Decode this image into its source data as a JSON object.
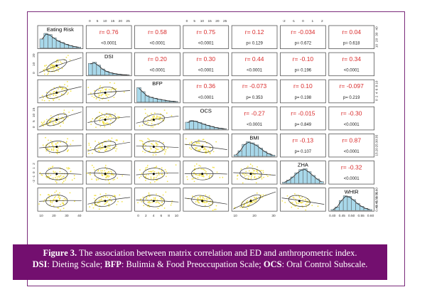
{
  "variables": [
    "Eating Risk",
    "DSI",
    "BFP",
    "OCS",
    "BMI",
    "ZHA",
    "WHtR"
  ],
  "colors": {
    "hist_fill": "#a8d8ea",
    "scatter_point": "#f2e24c",
    "correlation_text": "#d92b2b",
    "pvalue_text": "#222222",
    "panel_border": "#555555",
    "caption_bg": "#730f6f",
    "caption_text": "#ffffff",
    "frame_border": "#7a2a7a"
  },
  "chart_data": {
    "type": "scatter-matrix",
    "correlations": [
      {
        "row": 0,
        "col": 1,
        "r": "r= 0.76",
        "p": "<0.0001"
      },
      {
        "row": 0,
        "col": 2,
        "r": "r= 0.58",
        "p": "<0.0001"
      },
      {
        "row": 0,
        "col": 3,
        "r": "r= 0.75",
        "p": "<0.0001"
      },
      {
        "row": 0,
        "col": 4,
        "r": "r= 0.12",
        "p": "p= 0.129"
      },
      {
        "row": 0,
        "col": 5,
        "r": "r= -0.034",
        "p": "p= 0.672"
      },
      {
        "row": 0,
        "col": 6,
        "r": "r= 0.04",
        "p": "p= 0.618"
      },
      {
        "row": 1,
        "col": 2,
        "r": "r= 0.20",
        "p": "<0.0001"
      },
      {
        "row": 1,
        "col": 3,
        "r": "r= 0.30",
        "p": "<0.0001"
      },
      {
        "row": 1,
        "col": 4,
        "r": "r= 0.44",
        "p": "<0.0001"
      },
      {
        "row": 1,
        "col": 5,
        "r": "r= -0.10",
        "p": "p= 0.196"
      },
      {
        "row": 1,
        "col": 6,
        "r": "r= 0.34",
        "p": "<0.0001"
      },
      {
        "row": 2,
        "col": 3,
        "r": "r= 0.36",
        "p": "<0.0001"
      },
      {
        "row": 2,
        "col": 4,
        "r": "r= -0.073",
        "p": "p= 0.353"
      },
      {
        "row": 2,
        "col": 5,
        "r": "r= 0.10",
        "p": "p= 0.198"
      },
      {
        "row": 2,
        "col": 6,
        "r": "r= -0.097",
        "p": "p= 0.219"
      },
      {
        "row": 3,
        "col": 4,
        "r": "r= -0.27",
        "p": "<0.0001"
      },
      {
        "row": 3,
        "col": 5,
        "r": "r= -0.015",
        "p": "p= 0.849"
      },
      {
        "row": 3,
        "col": 6,
        "r": "r= -0.30",
        "p": "<0.0001"
      },
      {
        "row": 4,
        "col": 5,
        "r": "r= -0.13",
        "p": "p= 0.107"
      },
      {
        "row": 4,
        "col": 6,
        "r": "r= 0.87",
        "p": "<0.0001"
      },
      {
        "row": 5,
        "col": 6,
        "r": "r= -0.32",
        "p": "<0.0001"
      }
    ],
    "histograms": [
      [
        0.62,
        1.0,
        0.92,
        0.7,
        0.5,
        0.38,
        0.26,
        0.17,
        0.1,
        0.06
      ],
      [
        0.8,
        0.88,
        0.68,
        0.42,
        0.26,
        0.16,
        0.1,
        0.06,
        0.03,
        0.02
      ],
      [
        1.0,
        0.72,
        0.44,
        0.34,
        0.27,
        0.2,
        0.15,
        0.1,
        0.07,
        0.05
      ],
      [
        0.48,
        0.6,
        0.56,
        0.46,
        0.36,
        0.27,
        0.19,
        0.12,
        0.07,
        0.04
      ],
      [
        0.1,
        0.38,
        0.82,
        1.0,
        0.92,
        0.78,
        0.56,
        0.34,
        0.18,
        0.08
      ],
      [
        0.08,
        0.22,
        0.44,
        0.72,
        0.94,
        1.0,
        0.8,
        0.54,
        0.3,
        0.12
      ],
      [
        0.06,
        0.24,
        0.68,
        1.0,
        0.96,
        0.74,
        0.48,
        0.28,
        0.14,
        0.06
      ]
    ],
    "axis_ticks": {
      "top": [
        {
          "col": 1,
          "labels": [
            "0",
            "5",
            "10",
            "15",
            "20",
            "25"
          ]
        },
        {
          "col": 3,
          "labels": [
            "0",
            "5",
            "10",
            "15",
            "20",
            "25"
          ]
        },
        {
          "col": 5,
          "labels": [
            "-2",
            "-1",
            "0",
            "1",
            "2"
          ]
        }
      ],
      "bottom": [
        {
          "col": 0,
          "labels": [
            "10",
            "20",
            "30",
            "40"
          ]
        },
        {
          "col": 2,
          "labels": [
            "0",
            "2",
            "4",
            "6",
            "8",
            "10"
          ]
        },
        {
          "col": 4,
          "labels": [
            "10",
            "20",
            "30"
          ]
        },
        {
          "col": 6,
          "labels": [
            "0.40",
            "0.45",
            "0.50",
            "0.55",
            "0.60"
          ]
        }
      ],
      "left": [
        {
          "row": 1,
          "labels": [
            "0",
            "10",
            "20"
          ]
        },
        {
          "row": 3,
          "labels": [
            "0",
            "5",
            "10",
            "15"
          ]
        },
        {
          "row": 5,
          "labels": [
            "-2",
            "-1",
            "0",
            "1",
            "2"
          ]
        }
      ],
      "right": [
        {
          "row": 0,
          "labels": [
            "10",
            "20",
            "30",
            "40"
          ]
        },
        {
          "row": 2,
          "labels": [
            "0",
            "2",
            "4",
            "6",
            "8",
            "10"
          ]
        },
        {
          "row": 4,
          "labels": [
            "15",
            "20",
            "25",
            "30",
            "35"
          ]
        },
        {
          "row": 6,
          "labels": [
            "0.40",
            "0.45",
            "0.50",
            "0.55",
            "0.60"
          ]
        }
      ]
    },
    "grid": false,
    "legend": "none"
  },
  "caption": {
    "label": "Figure 3.",
    "text": " The association between matrix correlation and ED and anthropometric index.",
    "abbr1": "DSI",
    "def1": ": Dieting Scale; ",
    "abbr2": "BFP",
    "def2": ": Bulimia & Food Preoccupation Scale; ",
    "abbr3": "OCS",
    "def3": ": Oral Control Subscale."
  }
}
